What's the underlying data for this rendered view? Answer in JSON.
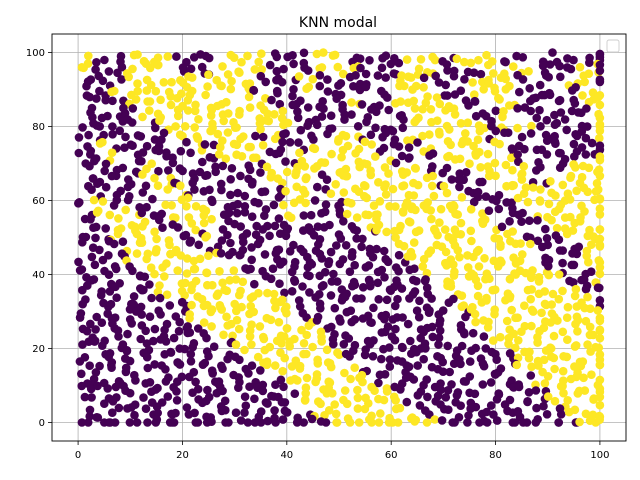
{
  "chart_data": {
    "type": "scatter",
    "title": "KNN modal",
    "xlabel": "",
    "ylabel": "",
    "xlim": [
      -5,
      105
    ],
    "ylim": [
      -5,
      105
    ],
    "x_ticks": [
      0,
      20,
      40,
      60,
      80,
      100
    ],
    "y_ticks": [
      0,
      20,
      40,
      60,
      80,
      100
    ],
    "grid": true,
    "legend": {
      "placement": "top-right",
      "entries": []
    },
    "classes": [
      {
        "label": "0",
        "color": "#440154"
      },
      {
        "label": "1",
        "color": "#fde725"
      }
    ],
    "grid_resolution": 3,
    "class_map_rows": [
      "Y0011100011100011000011011100000000",
      "Y0011100011100011100011000111000110",
      "0001111111100010000011000111000110",
      "0011111111100010000011100111000011",
      "0001111111110000010011110011000011",
      "0000111111111100000001111001000001",
      "0000011111111100000001111101100001",
      "0000001111101000110001111100000001",
      "0100000101110001111000111110000000",
      "0010000001110011111100011111000001",
      "0000100000001111111111000111100111",
      "0000110000001110111111100011101111",
      "0000011000000110111111110001111111",
      "0100011100000110011111111000111111",
      "0111001110000100011111111100011111",
      "0011100110000000001111111110001111",
      "0011110010000000000111111111000111",
      "0001111000000000000011111111100011",
      "0001111110000000000001111111100011",
      "0000111111000000000000111111110001",
      "0000011111100000000000011111111001",
      "0000011111111000000000011111111100",
      "0000000111111100000000001111111110",
      "0000000111111100000000000111111111",
      "0000000011111110000000000111111111",
      "0000000001111111000000000011111111",
      "0000000000111111000000000001111111",
      "0000000000011111100000000000111111",
      "0000000000001111110000000000111111",
      "0000000000000111111000000000011111",
      "0000000000000011111100000000001111",
      "0000000000000011111110000000001111",
      "0000000000000001111111000000000111",
      "0000000000000000111111100000000011"
    ]
  }
}
